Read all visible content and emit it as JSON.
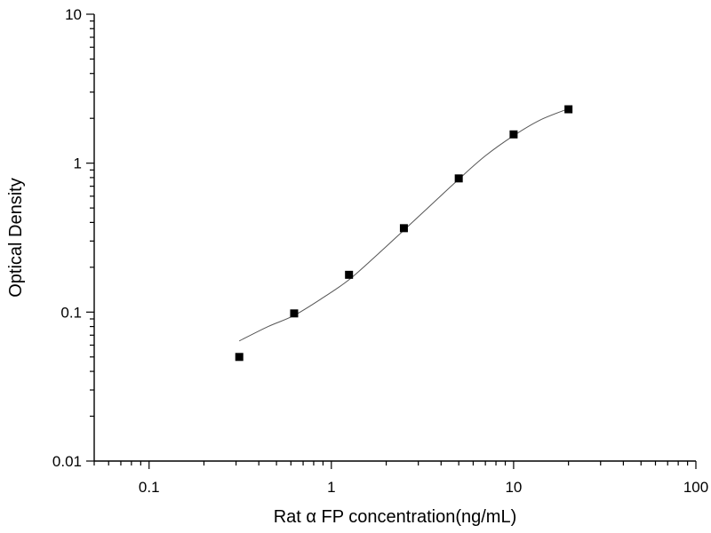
{
  "chart_data": {
    "type": "scatter",
    "title": "",
    "xlabel": "Rat α FP concentration(ng/mL)",
    "ylabel": "Optical Density",
    "xscale": "log",
    "yscale": "log",
    "xlim": [
      0.05,
      100
    ],
    "ylim": [
      0.01,
      10
    ],
    "xticks": [
      0.1,
      1,
      10,
      100
    ],
    "xtick_labels": [
      "0.1",
      "1",
      "10",
      "100"
    ],
    "yticks": [
      0.01,
      0.1,
      1,
      10
    ],
    "ytick_labels": [
      "0.01",
      "0.1",
      "1",
      "10"
    ],
    "grid": false,
    "legend": "none",
    "series": [
      {
        "marker": "square",
        "color": "#000000",
        "x": [
          0.3125,
          0.625,
          1.25,
          2.5,
          5,
          10,
          20
        ],
        "y": [
          0.05,
          0.098,
          0.178,
          0.366,
          0.79,
          1.56,
          2.3
        ]
      }
    ],
    "fit_curve": {
      "color": "#555555",
      "x": [
        0.3125,
        0.45,
        0.625,
        0.9,
        1.25,
        1.8,
        2.5,
        3.5,
        5,
        7,
        10,
        14,
        20
      ],
      "y": [
        0.064,
        0.08,
        0.095,
        0.125,
        0.165,
        0.245,
        0.355,
        0.52,
        0.78,
        1.12,
        1.53,
        1.95,
        2.32
      ]
    }
  }
}
